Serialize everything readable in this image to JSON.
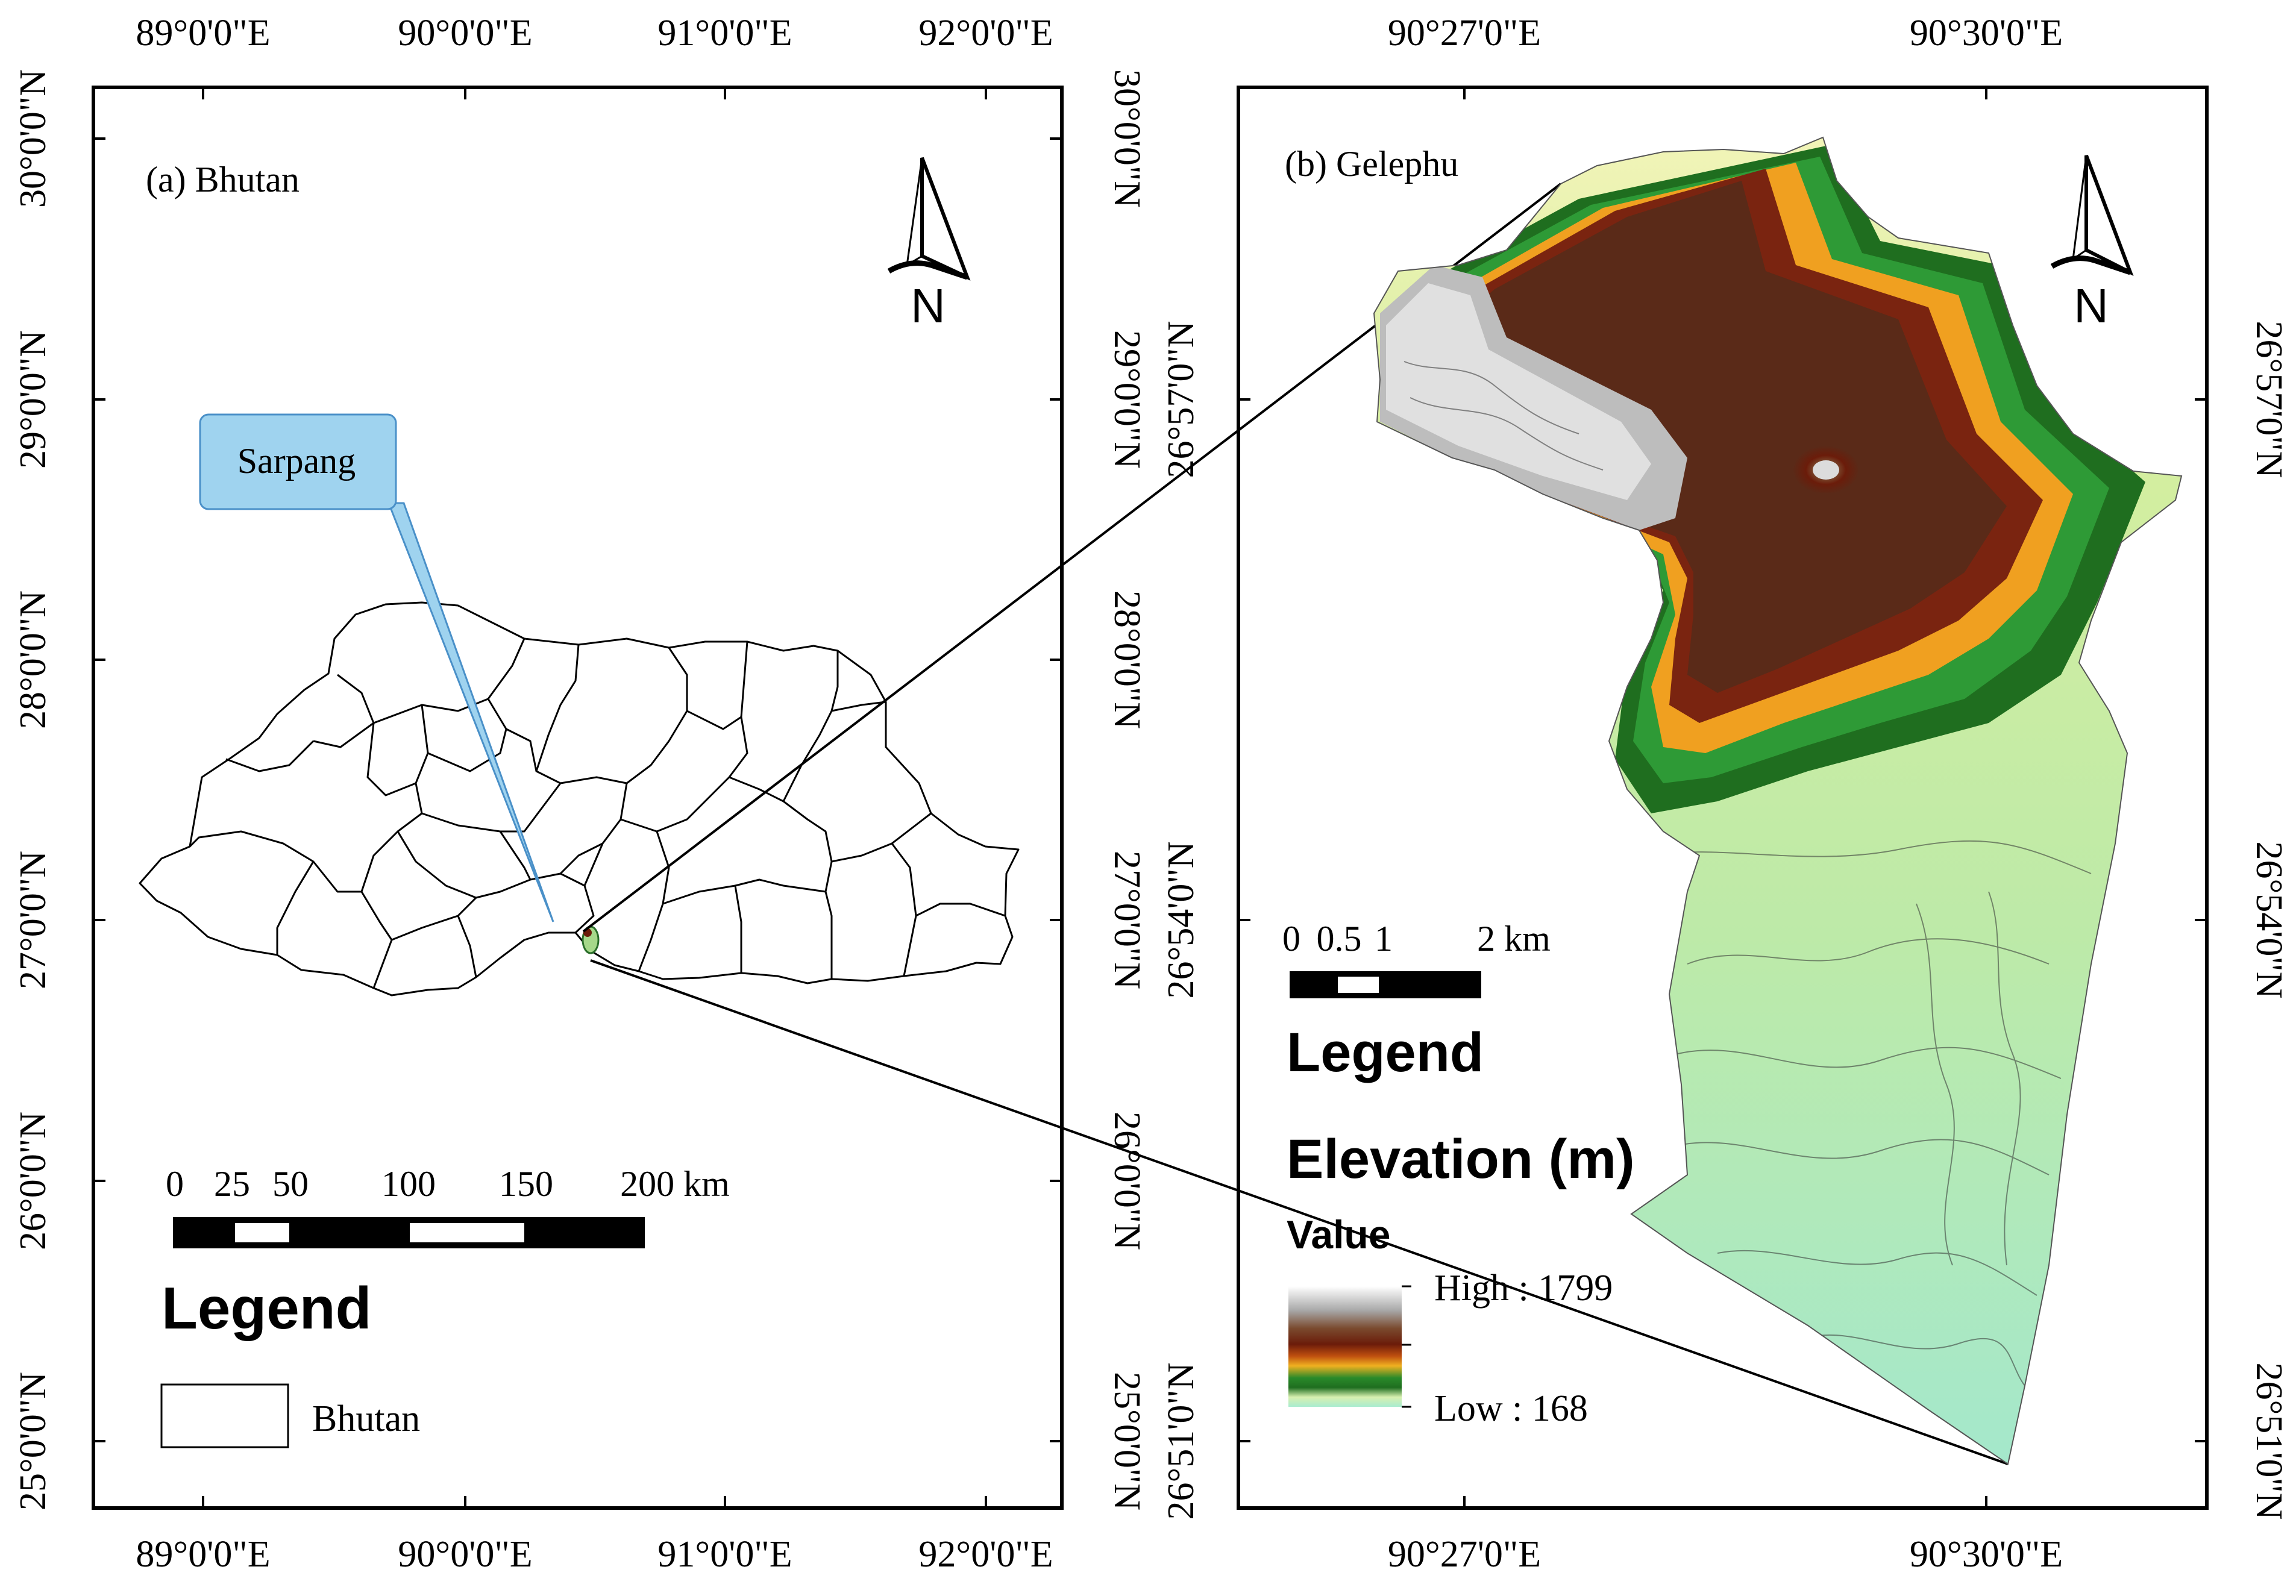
{
  "panel_a": {
    "title": "(a) Bhutan",
    "x_ticks": [
      "89°0'0\"E",
      "90°0'0\"E",
      "91°0'0\"E",
      "92°0'0\"E"
    ],
    "y_ticks": [
      "30°0'0\"N",
      "29°0'0\"N",
      "28°0'0\"N",
      "27°0'0\"N",
      "26°0'0\"N",
      "25°0'0\"N"
    ],
    "callout_label": "Sarpang",
    "scale_labels": [
      "0",
      "25",
      "50",
      "100",
      "150",
      "200 km"
    ],
    "legend_title": "Legend",
    "legend_item": "Bhutan",
    "north_label": "N"
  },
  "panel_b": {
    "title": "(b) Gelephu",
    "x_ticks": [
      "90°27'0\"E",
      "90°30'0\"E"
    ],
    "y_ticks": [
      "26°57'0\"N",
      "26°54'0\"N",
      "26°51'0\"N"
    ],
    "scale_labels": [
      "0",
      "0.5",
      "1",
      "2 km"
    ],
    "legend_title": "Legend",
    "elevation_title": "Elevation (m)",
    "value_label": "Value",
    "high_label": "High : 1799",
    "low_label": "Low : 168",
    "north_label": "N",
    "elevation_colors": [
      "#ffffff",
      "#a8a8a8",
      "#7a4a2e",
      "#6b1c0a",
      "#c0500f",
      "#f0b020",
      "#2a8a2a",
      "#1f6e1f",
      "#d8f0b0",
      "#a8ecd0"
    ]
  }
}
